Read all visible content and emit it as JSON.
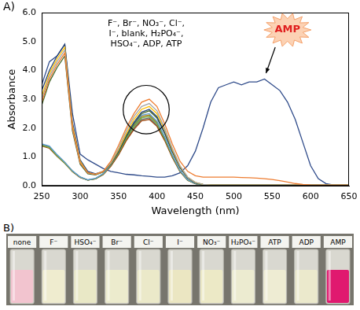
{
  "chart_data": {
    "type": "line",
    "title": "A)",
    "x_label": "Wavelength (nm)",
    "y_label": "Absorbance",
    "xlim": [
      250,
      650
    ],
    "xticks": [
      250,
      300,
      350,
      400,
      450,
      500,
      550,
      600,
      650
    ],
    "ylim": [
      0,
      6
    ],
    "yticks": [
      {
        "value": 0,
        "label": "0.0"
      },
      {
        "value": 1,
        "label": "1.0"
      },
      {
        "value": 2,
        "label": "2.0"
      },
      {
        "value": 3,
        "label": "3.0"
      },
      {
        "value": 4,
        "label": "4.0"
      },
      {
        "value": 5,
        "label": "5.0"
      },
      {
        "value": 6,
        "label": "6.0"
      }
    ],
    "grid": false,
    "annotations": [
      {
        "text": [
          "F⁻, Br⁻, NO₃⁻, Cl⁻,",
          "I⁻, blank, H₂PO₄⁻,",
          "HSO₄⁻, ADP, ATP"
        ]
      },
      {
        "text": "AMP"
      }
    ],
    "x": [
      250,
      260,
      270,
      280,
      290,
      300,
      310,
      320,
      330,
      340,
      350,
      360,
      370,
      380,
      390,
      400,
      410,
      420,
      430,
      440,
      450,
      460,
      470,
      480,
      490,
      500,
      510,
      520,
      530,
      540,
      550,
      560,
      570,
      580,
      590,
      600,
      610,
      620,
      630,
      640,
      650
    ],
    "series": [
      {
        "color": "#ee7d31",
        "values": [
          2.9,
          3.7,
          4.2,
          4.6,
          2.0,
          0.8,
          0.45,
          0.4,
          0.5,
          0.85,
          1.4,
          2.0,
          2.5,
          2.9,
          3.0,
          2.75,
          2.15,
          1.45,
          0.85,
          0.5,
          0.35,
          0.3,
          0.3,
          0.3,
          0.3,
          0.3,
          0.29,
          0.28,
          0.27,
          0.25,
          0.22,
          0.18,
          0.13,
          0.08,
          0.05,
          0.03,
          0.02,
          0.02,
          0.02,
          0.02,
          0.02
        ]
      },
      {
        "color": "#a5a5a5",
        "values": [
          3.0,
          3.8,
          4.3,
          4.7,
          2.0,
          0.8,
          0.45,
          0.4,
          0.5,
          0.8,
          1.3,
          1.9,
          2.4,
          2.75,
          2.85,
          2.6,
          2.0,
          1.3,
          0.7,
          0.3,
          0.12,
          0.05,
          0.03,
          0.03,
          0.03,
          0.03,
          0.03,
          0.03,
          0.03,
          0.03,
          0.03,
          0.03,
          0.03,
          0.03,
          0.03,
          0.03,
          0.03,
          0.03,
          0.03,
          0.03,
          0.03
        ]
      },
      {
        "color": "#ffc000",
        "values": [
          3.1,
          3.9,
          4.4,
          4.8,
          2.1,
          0.85,
          0.45,
          0.4,
          0.5,
          0.78,
          1.25,
          1.8,
          2.3,
          2.65,
          2.75,
          2.5,
          1.95,
          1.25,
          0.68,
          0.3,
          0.12,
          0.05,
          0.03,
          0.03,
          0.03,
          0.03,
          0.03,
          0.03,
          0.03,
          0.03,
          0.03,
          0.03,
          0.03,
          0.03,
          0.03,
          0.03,
          0.03,
          0.03,
          0.03,
          0.03,
          0.03
        ]
      },
      {
        "color": "#264478",
        "values": [
          3.3,
          4.0,
          4.5,
          4.9,
          2.2,
          0.9,
          0.5,
          0.42,
          0.5,
          0.76,
          1.2,
          1.75,
          2.2,
          2.55,
          2.65,
          2.4,
          1.85,
          1.2,
          0.65,
          0.28,
          0.11,
          0.05,
          0.03,
          0.03,
          0.03,
          0.03,
          0.03,
          0.03,
          0.03,
          0.03,
          0.03,
          0.03,
          0.03,
          0.03,
          0.03,
          0.03,
          0.03,
          0.03,
          0.03,
          0.03,
          0.03
        ]
      },
      {
        "color": "#43682b",
        "values": [
          2.8,
          3.6,
          4.1,
          4.5,
          1.9,
          0.75,
          0.42,
          0.38,
          0.48,
          0.75,
          1.18,
          1.7,
          2.15,
          2.5,
          2.6,
          2.35,
          1.82,
          1.18,
          0.63,
          0.27,
          0.1,
          0.04,
          0.03,
          0.03,
          0.03,
          0.03,
          0.03,
          0.03,
          0.03,
          0.03,
          0.03,
          0.03,
          0.03,
          0.03,
          0.03,
          0.03,
          0.03,
          0.03,
          0.03,
          0.03,
          0.03
        ]
      },
      {
        "color": "#5b9bd5",
        "values": [
          1.45,
          1.38,
          1.08,
          0.82,
          0.52,
          0.31,
          0.21,
          0.26,
          0.42,
          0.74,
          1.17,
          1.7,
          2.13,
          2.45,
          2.5,
          2.24,
          1.7,
          1.07,
          0.53,
          0.21,
          0.08,
          0.04,
          0.02,
          0.02,
          0.02,
          0.02,
          0.02,
          0.02,
          0.02,
          0.02,
          0.02,
          0.02,
          0.02,
          0.02,
          0.02,
          0.02,
          0.02,
          0.02,
          0.02,
          0.02,
          0.02
        ]
      },
      {
        "color": "#70ad47",
        "values": [
          1.4,
          1.33,
          1.04,
          0.79,
          0.5,
          0.3,
          0.2,
          0.25,
          0.41,
          0.72,
          1.13,
          1.64,
          2.05,
          2.35,
          2.4,
          2.15,
          1.64,
          1.03,
          0.51,
          0.2,
          0.08,
          0.04,
          0.02,
          0.02,
          0.02,
          0.02,
          0.02,
          0.02,
          0.02,
          0.02,
          0.02,
          0.02,
          0.02,
          0.02,
          0.02,
          0.02,
          0.02,
          0.02,
          0.02,
          0.02,
          0.02
        ]
      },
      {
        "color": "#9e480e",
        "values": [
          1.38,
          1.3,
          1.02,
          0.78,
          0.49,
          0.29,
          0.2,
          0.24,
          0.39,
          0.68,
          1.07,
          1.56,
          1.95,
          2.25,
          2.3,
          2.06,
          1.57,
          0.98,
          0.49,
          0.19,
          0.07,
          0.03,
          0.02,
          0.02,
          0.02,
          0.02,
          0.02,
          0.02,
          0.02,
          0.02,
          0.02,
          0.02,
          0.02,
          0.02,
          0.02,
          0.02,
          0.02,
          0.02,
          0.02,
          0.02,
          0.02
        ]
      },
      {
        "color": "#636363",
        "values": [
          1.4,
          1.35,
          1.05,
          0.8,
          0.5,
          0.3,
          0.2,
          0.25,
          0.4,
          0.7,
          1.1,
          1.6,
          2.0,
          2.3,
          2.35,
          2.1,
          1.6,
          1.0,
          0.5,
          0.2,
          0.08,
          0.04,
          0.02,
          0.02,
          0.02,
          0.02,
          0.02,
          0.02,
          0.02,
          0.02,
          0.02,
          0.02,
          0.02,
          0.02,
          0.02,
          0.02,
          0.02,
          0.02,
          0.02,
          0.02,
          0.02
        ]
      },
      {
        "color": "#997300",
        "values": [
          1.42,
          1.36,
          1.06,
          0.81,
          0.51,
          0.3,
          0.2,
          0.25,
          0.41,
          0.73,
          1.15,
          1.67,
          2.09,
          2.4,
          2.45,
          2.19,
          1.67,
          1.05,
          0.52,
          0.21,
          0.08,
          0.04,
          0.02,
          0.02,
          0.02,
          0.02,
          0.02,
          0.02,
          0.02,
          0.02,
          0.02,
          0.02,
          0.02,
          0.02,
          0.02,
          0.02,
          0.02,
          0.02,
          0.02,
          0.02,
          0.02
        ]
      },
      {
        "color": "#2f4b8a",
        "values": [
          3.5,
          4.3,
          4.5,
          4.9,
          2.5,
          1.1,
          0.9,
          0.75,
          0.6,
          0.5,
          0.45,
          0.4,
          0.38,
          0.35,
          0.33,
          0.3,
          0.3,
          0.35,
          0.45,
          0.7,
          1.2,
          2.0,
          2.9,
          3.4,
          3.5,
          3.6,
          3.5,
          3.6,
          3.6,
          3.7,
          3.5,
          3.3,
          2.9,
          2.3,
          1.5,
          0.7,
          0.25,
          0.08,
          0.03,
          0.02,
          0.02
        ]
      }
    ]
  },
  "photo": {
    "title": "B)",
    "vials": [
      {
        "label": "none",
        "color": "#f2c4cf"
      },
      {
        "label": "F⁻",
        "color": "#efeccf"
      },
      {
        "label": "HSO₄⁻",
        "color": "#e9e8c6"
      },
      {
        "label": "Br⁻",
        "color": "#ecebcd"
      },
      {
        "label": "Cl⁻",
        "color": "#ebe9c9"
      },
      {
        "label": "I⁻",
        "color": "#ebe6c2"
      },
      {
        "label": "NO₃⁻",
        "color": "#ece9c6"
      },
      {
        "label": "H₂PO₄⁻",
        "color": "#ecebd0"
      },
      {
        "label": "ATP",
        "color": "#eeecd3"
      },
      {
        "label": "ADP",
        "color": "#ebe9cc"
      },
      {
        "label": "AMP",
        "color": "#e0196f"
      }
    ]
  }
}
